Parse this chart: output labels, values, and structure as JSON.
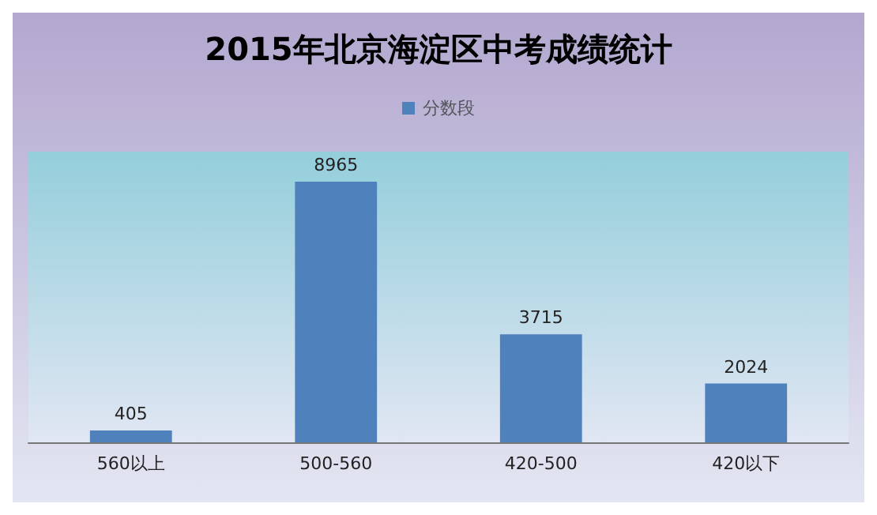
{
  "chart_data": {
    "type": "bar",
    "title": "2015年北京海淀区中考成绩统计",
    "categories": [
      "560以上",
      "500-560",
      "420-500",
      "420以下"
    ],
    "series": [
      {
        "name": "分数段",
        "color": "#4f81bd",
        "values": [
          405,
          8965,
          3715,
          2024
        ]
      }
    ],
    "data_labels": true,
    "legend": "top",
    "grid": false,
    "tick_labels": "x"
  }
}
